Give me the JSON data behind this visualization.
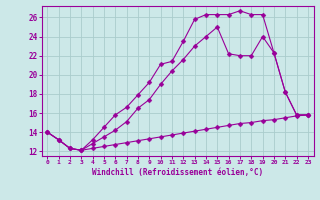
{
  "background_color": "#cce8e8",
  "grid_color": "#aacccc",
  "line_color": "#990099",
  "marker": "D",
  "marker_size": 2.5,
  "linewidth": 0.8,
  "xlim": [
    -0.5,
    23.5
  ],
  "ylim": [
    11.5,
    27.2
  ],
  "yticks": [
    12,
    14,
    16,
    18,
    20,
    22,
    24,
    26
  ],
  "xticks": [
    0,
    1,
    2,
    3,
    4,
    5,
    6,
    7,
    8,
    9,
    10,
    11,
    12,
    13,
    14,
    15,
    16,
    17,
    18,
    19,
    20,
    21,
    22,
    23
  ],
  "xlabel": "Windchill (Refroidissement éolien,°C)",
  "curve_bottom_x": [
    0,
    1,
    2,
    3,
    4,
    5,
    6,
    7,
    8,
    9,
    10,
    11,
    12,
    13,
    14,
    15,
    16,
    17,
    18,
    19,
    20,
    21,
    22,
    23
  ],
  "curve_bottom_y": [
    14.0,
    13.2,
    12.3,
    12.1,
    12.3,
    12.5,
    12.7,
    12.9,
    13.1,
    13.3,
    13.5,
    13.7,
    13.9,
    14.1,
    14.3,
    14.5,
    14.7,
    14.9,
    15.0,
    15.2,
    15.3,
    15.5,
    15.7,
    15.8
  ],
  "curve_top_x": [
    0,
    1,
    2,
    3,
    4,
    5,
    6,
    7,
    8,
    9,
    10,
    11,
    12,
    13,
    14,
    15,
    16,
    17,
    18,
    19,
    20,
    21,
    22,
    23
  ],
  "curve_top_y": [
    14.0,
    13.2,
    12.3,
    12.1,
    13.2,
    14.5,
    15.8,
    16.6,
    17.9,
    19.2,
    21.1,
    21.4,
    23.5,
    25.8,
    26.3,
    26.3,
    26.3,
    26.7,
    26.3,
    26.3,
    22.3,
    18.2,
    15.8,
    15.8
  ],
  "curve_mid_x": [
    0,
    1,
    2,
    3,
    4,
    5,
    6,
    7,
    8,
    9,
    10,
    11,
    12,
    13,
    14,
    15,
    16,
    17,
    18,
    19,
    20,
    21,
    22,
    23
  ],
  "curve_mid_y": [
    14.0,
    13.2,
    12.3,
    12.1,
    12.8,
    13.5,
    14.2,
    15.1,
    16.5,
    17.4,
    19.0,
    20.4,
    21.6,
    23.0,
    24.0,
    25.0,
    22.2,
    22.0,
    22.0,
    24.0,
    22.3,
    18.2,
    15.8,
    15.8
  ]
}
